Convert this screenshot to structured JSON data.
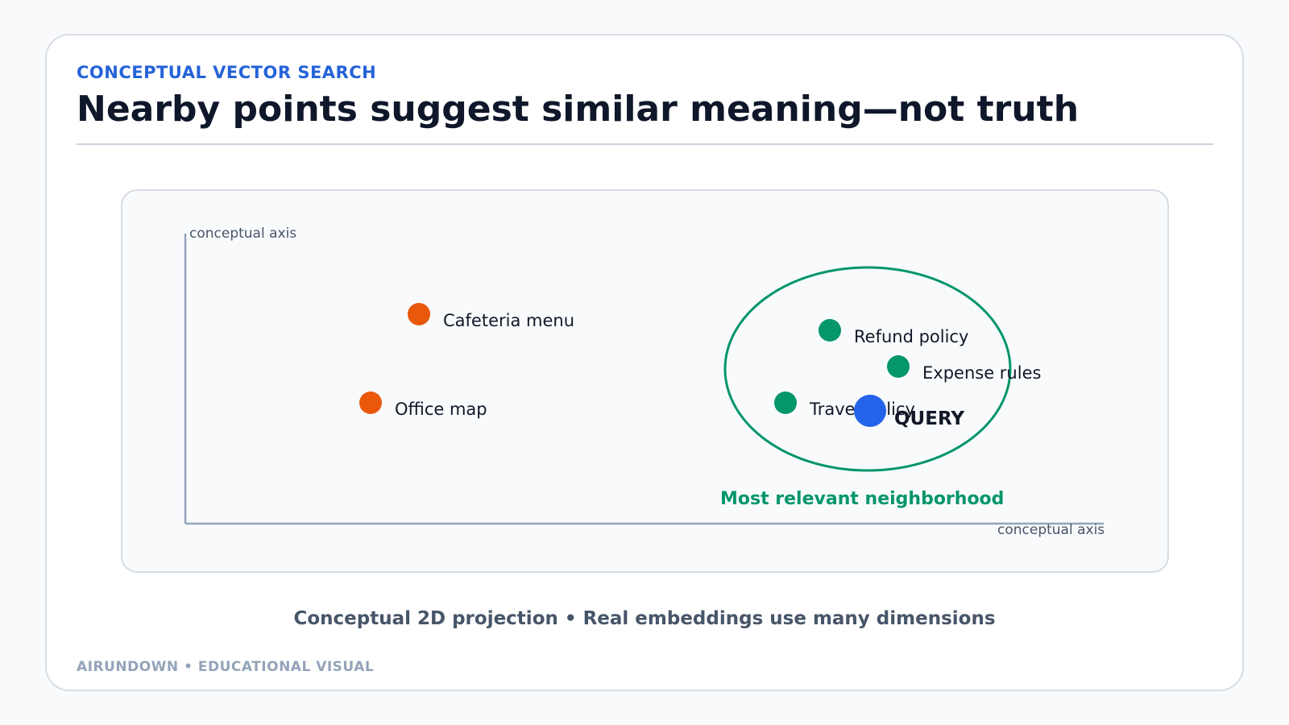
{
  "header": {
    "eyebrow": "CONCEPTUAL VECTOR SEARCH",
    "title": "Nearby points suggest similar meaning—not truth"
  },
  "diagram": {
    "y_axis_label": "conceptual axis",
    "x_axis_label": "conceptual axis",
    "points": [
      {
        "label": "Cafeteria menu",
        "group": "distant"
      },
      {
        "label": "Office map",
        "group": "distant"
      },
      {
        "label": "Refund policy",
        "group": "relevant"
      },
      {
        "label": "Expense rules",
        "group": "relevant"
      },
      {
        "label": "Travel policy",
        "group": "relevant"
      }
    ],
    "query_label": "QUERY",
    "neighborhood_label": "Most relevant neighborhood",
    "colors": {
      "distant": "#ea580c",
      "relevant": "#059669",
      "query": "#2563eb",
      "axis": "#94a3b8"
    }
  },
  "caption": "Conceptual 2D projection • Real embeddings use many dimensions",
  "footer": "AIRUNDOWN • EDUCATIONAL VISUAL"
}
